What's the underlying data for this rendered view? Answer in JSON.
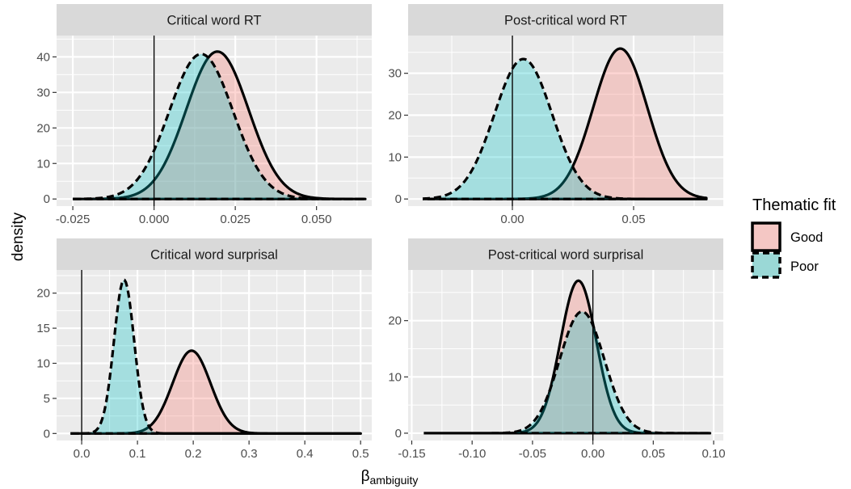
{
  "chart_data": {
    "type": "area",
    "xlabel_base": "β",
    "xlabel_sub": "ambiguity",
    "ylabel": "density",
    "legend": {
      "title": "Thematic fit",
      "position": "right",
      "entries": [
        {
          "label": "Good",
          "fill": "#f4c7c4",
          "linestyle": "solid"
        },
        {
          "label": "Poor",
          "fill": "#9ad8d6",
          "linestyle": "dashed"
        }
      ]
    },
    "colors": {
      "good_fill": "#f8766d",
      "poor_fill": "#00bfc4",
      "panel_bg": "#ebebeb",
      "strip_bg": "#d9d9d9",
      "grid": "#ffffff"
    },
    "grid": true,
    "panels": [
      {
        "title": "Critical word RT",
        "xlim": [
          -0.03,
          0.067
        ],
        "ylim": [
          -2,
          46
        ],
        "xticks": [
          -0.025,
          0.0,
          0.025,
          0.05
        ],
        "xtick_labels": [
          "-0.025",
          "0.000",
          "0.025",
          "0.050"
        ],
        "yticks": [
          0,
          10,
          20,
          30,
          40
        ],
        "ytick_labels": [
          "0",
          "10",
          "20",
          "30",
          "40"
        ],
        "vline": 0,
        "series": [
          {
            "name": "Good",
            "mean": 0.0195,
            "sd": 0.0096,
            "peak": 41.5,
            "xmin": -0.025,
            "xmax": 0.065
          },
          {
            "name": "Poor",
            "mean": 0.0145,
            "sd": 0.0098,
            "peak": 40.8,
            "xmin": -0.025,
            "xmax": 0.065
          }
        ]
      },
      {
        "title": "Post-critical word RT",
        "xlim": [
          -0.043,
          0.087
        ],
        "ylim": [
          -1.7,
          39
        ],
        "xticks": [
          0.0,
          0.05
        ],
        "xtick_labels": [
          "0.00",
          "0.05"
        ],
        "yticks": [
          0,
          10,
          20,
          30
        ],
        "ytick_labels": [
          "0",
          "10",
          "20",
          "30"
        ],
        "vline": 0,
        "series": [
          {
            "name": "Good",
            "mean": 0.0445,
            "sd": 0.0112,
            "peak": 35.9,
            "xmin": -0.037,
            "xmax": 0.08
          },
          {
            "name": "Poor",
            "mean": 0.0045,
            "sd": 0.0119,
            "peak": 33.4,
            "xmin": -0.037,
            "xmax": 0.08
          }
        ]
      },
      {
        "title": "Critical word surprisal",
        "xlim": [
          -0.045,
          0.52
        ],
        "ylim": [
          -1,
          23.3
        ],
        "xticks": [
          0.0,
          0.1,
          0.2,
          0.3,
          0.4,
          0.5
        ],
        "xtick_labels": [
          "0.0",
          "0.1",
          "0.2",
          "0.3",
          "0.4",
          "0.5"
        ],
        "yticks": [
          0,
          5,
          10,
          15,
          20
        ],
        "ytick_labels": [
          "0",
          "5",
          "10",
          "15",
          "20"
        ],
        "vline": 0,
        "series": [
          {
            "name": "Good",
            "mean": 0.197,
            "sd": 0.034,
            "peak": 11.8,
            "xmin": -0.02,
            "xmax": 0.5
          },
          {
            "name": "Poor",
            "mean": 0.076,
            "sd": 0.018,
            "peak": 21.9,
            "xmin": -0.02,
            "xmax": 0.5
          }
        ]
      },
      {
        "title": "Post-critical word surprisal",
        "xlim": [
          -0.153,
          0.108
        ],
        "ylim": [
          -1.3,
          29
        ],
        "xticks": [
          -0.15,
          -0.1,
          -0.05,
          0.0,
          0.05,
          0.1
        ],
        "xtick_labels": [
          "-0.15",
          "-0.10",
          "-0.05",
          "0.00",
          "0.05",
          "0.10"
        ],
        "yticks": [
          0,
          10,
          20
        ],
        "ytick_labels": [
          "0",
          "10",
          "20"
        ],
        "vline": 0,
        "series": [
          {
            "name": "Good",
            "mean": -0.012,
            "sd": 0.0148,
            "peak": 27.1,
            "xmin": -0.14,
            "xmax": 0.097
          },
          {
            "name": "Poor",
            "mean": -0.009,
            "sd": 0.0185,
            "peak": 21.6,
            "xmin": -0.14,
            "xmax": 0.097
          }
        ]
      }
    ]
  }
}
